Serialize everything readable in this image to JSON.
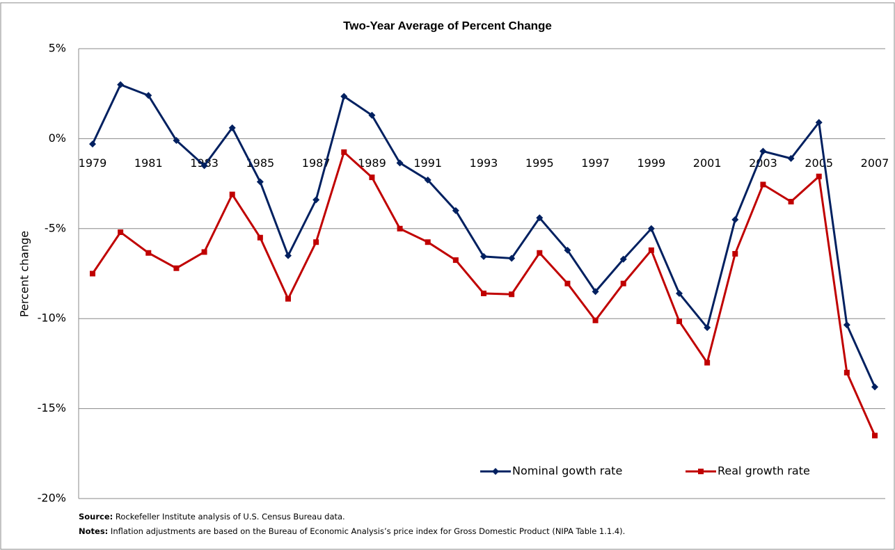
{
  "chart_data": {
    "type": "line",
    "title": "Two-Year Average of Percent Change",
    "y_label": "Percent change",
    "categories": [
      "1979",
      null,
      "1981",
      null,
      "1983",
      null,
      "1985",
      null,
      "1987",
      null,
      "1989",
      null,
      "1991",
      null,
      "1993",
      null,
      "1995",
      null,
      "1997",
      null,
      "1999",
      null,
      "2001",
      null,
      "2003",
      null,
      "2005",
      null,
      "2007"
    ],
    "series": [
      {
        "name": "Nominal gowth rate",
        "color": "#002060",
        "marker": "diamond",
        "values": [
          -0.3,
          3.0,
          2.4,
          -0.1,
          -1.5,
          0.6,
          -2.4,
          -6.5,
          -3.4,
          2.35,
          1.3,
          -1.35,
          -2.3,
          -4.0,
          -6.55,
          -6.65,
          -4.4,
          -6.2,
          -8.5,
          -6.7,
          -5.0,
          -8.6,
          -10.5,
          -4.5,
          -0.7,
          -1.1,
          0.9,
          -10.35,
          -13.8
        ]
      },
      {
        "name": "Real growth rate",
        "color": "#c00000",
        "marker": "square",
        "values": [
          -7.5,
          -5.2,
          -6.35,
          -7.2,
          -6.3,
          -3.1,
          -5.5,
          -8.9,
          -5.75,
          -0.75,
          -2.15,
          -5.0,
          -5.75,
          -6.75,
          -8.6,
          -8.65,
          -6.35,
          -8.05,
          -10.1,
          -8.05,
          -6.2,
          -10.15,
          -12.45,
          -6.4,
          -2.55,
          -3.5,
          -2.1,
          -13.0,
          -16.5
        ]
      }
    ],
    "ylim": [
      -20,
      5
    ],
    "yticks": [
      {
        "value": -20,
        "label": "-20%"
      },
      {
        "value": -15,
        "label": "-15%"
      },
      {
        "value": -10,
        "label": "-10%"
      },
      {
        "value": -5,
        "label": "-5%"
      },
      {
        "value": 0,
        "label": "0%"
      },
      {
        "value": 5,
        "label": "5%"
      }
    ],
    "grid": true,
    "legend": "lower right"
  },
  "footer": {
    "source_label": "Source:",
    "source_text": " Rockefeller Institute analysis of U.S. Census Bureau data.",
    "notes_label": "Notes:",
    "notes_text": " Inflation adjustments are based on the Bureau of Economic Analysis’s price index for Gross Domestic Product (NIPA Table 1.1.4)."
  }
}
